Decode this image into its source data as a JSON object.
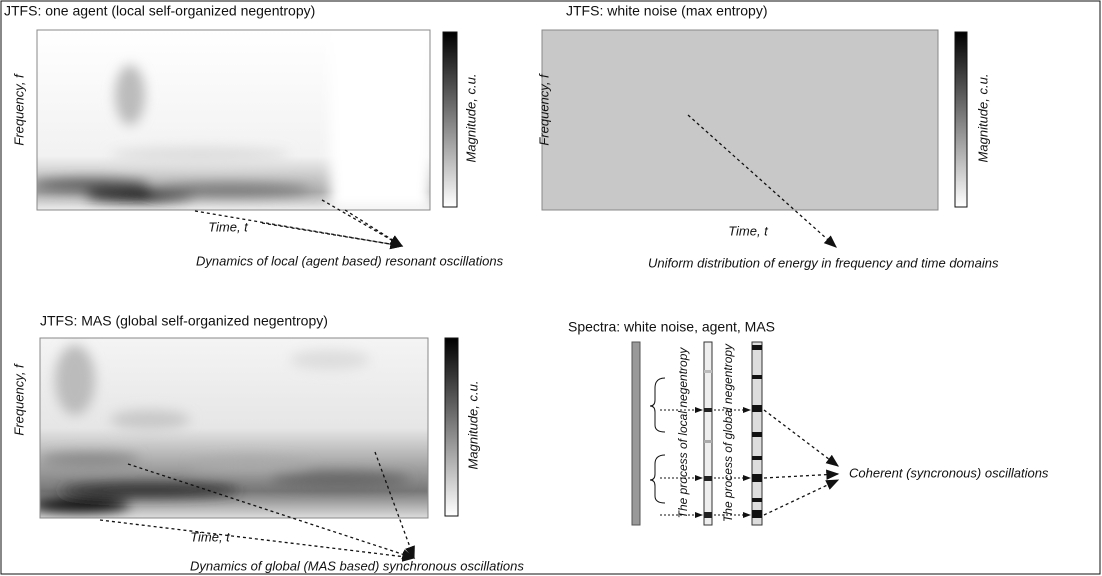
{
  "panels": [
    {
      "title": "JTFS: one agent (local self-organized negentropy)",
      "y_label": "Frequency, f",
      "x_label": "Time, t",
      "colorbar_label": "Magnitude, c.u.",
      "annotation": "Dynamics of local (agent based) resonant oscillations"
    },
    {
      "title": "JTFS: white noise (max entropy)",
      "y_label": "Frequency, f",
      "x_label": "Time, t",
      "colorbar_label": "Magnitude, c.u.",
      "annotation": "Uniform distribution of energy in frequency and time domains"
    },
    {
      "title": "JTFS: MAS (global self-organized negentropy)",
      "y_label": "Frequency, f",
      "x_label": "Time, t",
      "colorbar_label": "Magnitude, c.u.",
      "annotation": "Dynamics of global (MAS based) synchronous oscillations"
    },
    {
      "title": "Spectra: white noise, agent, MAS",
      "local_label": "The process of local negentropy",
      "global_label": "The process of global negentropy",
      "annotation": "Coherent (syncronous) oscillations"
    }
  ]
}
